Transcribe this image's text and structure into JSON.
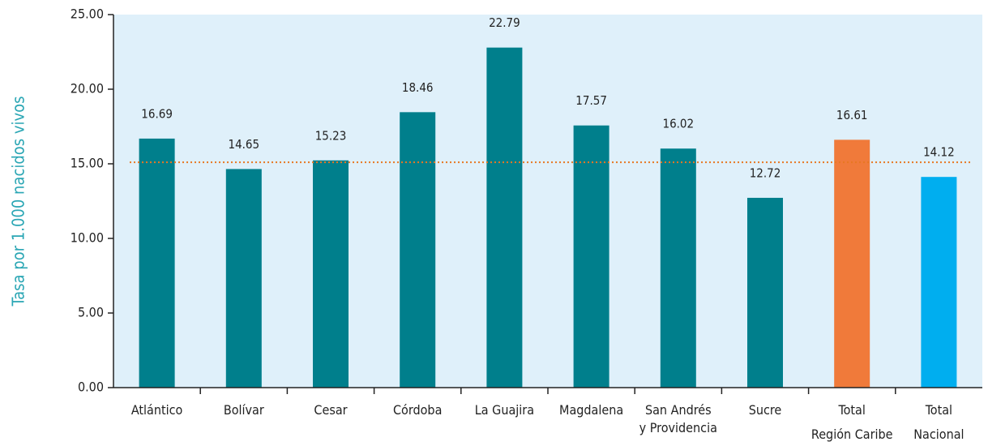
{
  "chart_data": {
    "type": "bar",
    "y_label": "Tasa por 1.000 nacidos vivos",
    "categories": [
      [
        "Atlántico"
      ],
      [
        "Bolívar"
      ],
      [
        "Cesar"
      ],
      [
        "Córdoba"
      ],
      [
        "La Guajira"
      ],
      [
        "Magdalena"
      ],
      [
        "San Andrés",
        "y Providencia"
      ],
      [
        "Sucre"
      ],
      [
        "Total",
        "Región Caribe"
      ],
      [
        "Total",
        "Nacional"
      ]
    ],
    "values": [
      16.69,
      14.65,
      15.23,
      18.46,
      22.79,
      17.57,
      16.02,
      12.72,
      16.61,
      14.12
    ],
    "colors": [
      "#007f8c",
      "#007f8c",
      "#007f8c",
      "#007f8c",
      "#007f8c",
      "#007f8c",
      "#007f8c",
      "#007f8c",
      "#f07a3a",
      "#00aeef"
    ],
    "reference_line": {
      "value": 15.1,
      "color": "#e87722"
    },
    "ylim": [
      0,
      25
    ],
    "yticks": [
      {
        "value": 0,
        "label": "0.00"
      },
      {
        "value": 5,
        "label": "5.00"
      },
      {
        "value": 10,
        "label": "10.00"
      },
      {
        "value": 15,
        "label": "15.00"
      },
      {
        "value": 20,
        "label": "20.00"
      },
      {
        "value": 25,
        "label": "25.00"
      }
    ],
    "background": "#dff0fa"
  }
}
